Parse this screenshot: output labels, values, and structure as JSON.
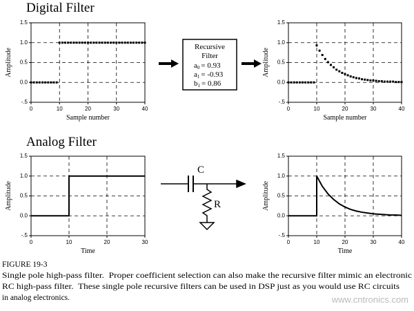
{
  "headings": {
    "digital": "Digital Filter",
    "analog": "Analog Filter"
  },
  "filter_box": {
    "title_lines": [
      "Recursive",
      "Filter"
    ],
    "coefficients": [
      {
        "symbol": "a",
        "subscript": "0",
        "expr": "= 0.93"
      },
      {
        "symbol": "a",
        "subscript": "1",
        "expr": "= -0.93"
      },
      {
        "symbol": "b",
        "subscript": "1",
        "expr": "= 0.86"
      }
    ]
  },
  "circuit": {
    "capacitor": "C",
    "resistor": "R"
  },
  "caption": {
    "figure": "FIGURE 19-3",
    "lines": [
      "Single pole high-pass filter.  Proper coefficient selection can also make the recursive filter mimic an electronic",
      "RC high-pass filter.  These single pole recursive filters can be used in DSP just as you would use RC circuits",
      "in analog electronics."
    ]
  },
  "watermark": "www.cntronics.com",
  "chart_data": [
    {
      "type": "scatter",
      "x_label": "Sample number",
      "y_label": "Amplitude",
      "color": "#000000",
      "grid": true,
      "xlim": [
        0,
        40
      ],
      "xticks": [
        0,
        10,
        20,
        30,
        40
      ],
      "ylim": [
        -0.5,
        1.5
      ],
      "yticks": [
        {
          "value": -0.5,
          "label": "-.5"
        },
        {
          "value": 0,
          "label": "0.0"
        },
        {
          "value": 0.5,
          "label": "0.5"
        },
        {
          "value": 1,
          "label": "1.0"
        },
        {
          "value": 1.5,
          "label": "1.5"
        }
      ],
      "x": [
        0,
        1,
        2,
        3,
        4,
        5,
        6,
        7,
        8,
        9,
        10,
        11,
        12,
        13,
        14,
        15,
        16,
        17,
        18,
        19,
        20,
        21,
        22,
        23,
        24,
        25,
        26,
        27,
        28,
        29,
        30,
        31,
        32,
        33,
        34,
        35,
        36,
        37,
        38,
        39,
        40
      ],
      "values": [
        0,
        0,
        0,
        0,
        0,
        0,
        0,
        0,
        0,
        0,
        1,
        1,
        1,
        1,
        1,
        1,
        1,
        1,
        1,
        1,
        1,
        1,
        1,
        1,
        1,
        1,
        1,
        1,
        1,
        1,
        1,
        1,
        1,
        1,
        1,
        1,
        1,
        1,
        1,
        1,
        1
      ]
    },
    {
      "type": "scatter",
      "x_label": "Sample number",
      "y_label": "Amplitude",
      "color": "#000000",
      "grid": true,
      "xlim": [
        0,
        40
      ],
      "xticks": [
        0,
        10,
        20,
        30,
        40
      ],
      "ylim": [
        -0.5,
        1.5
      ],
      "yticks": [
        {
          "value": -0.5,
          "label": "-.5"
        },
        {
          "value": 0,
          "label": "0.0"
        },
        {
          "value": 0.5,
          "label": "0.5"
        },
        {
          "value": 1,
          "label": "1.0"
        },
        {
          "value": 1.5,
          "label": "1.5"
        }
      ],
      "x": [
        0,
        1,
        2,
        3,
        4,
        5,
        6,
        7,
        8,
        9,
        10,
        11,
        12,
        13,
        14,
        15,
        16,
        17,
        18,
        19,
        20,
        21,
        22,
        23,
        24,
        25,
        26,
        27,
        28,
        29,
        30,
        31,
        32,
        33,
        34,
        35,
        36,
        37,
        38,
        39,
        40
      ],
      "values": [
        0,
        0,
        0,
        0,
        0,
        0,
        0,
        0,
        0,
        0,
        0.93,
        0.8,
        0.69,
        0.59,
        0.51,
        0.44,
        0.38,
        0.32,
        0.28,
        0.24,
        0.21,
        0.18,
        0.15,
        0.13,
        0.11,
        0.1,
        0.08,
        0.07,
        0.06,
        0.05,
        0.05,
        0.04,
        0.03,
        0.03,
        0.02,
        0.02,
        0.02,
        0.02,
        0.01,
        0.01,
        0.01
      ]
    },
    {
      "type": "line",
      "x_label": "Time",
      "y_label": "Amplitude",
      "color": "#000000",
      "grid": true,
      "xlim": [
        0,
        30
      ],
      "xticks": [
        0,
        10,
        20,
        30
      ],
      "ylim": [
        -0.5,
        1.5
      ],
      "yticks": [
        {
          "value": -0.5,
          "label": "-.5"
        },
        {
          "value": 0,
          "label": "0.0"
        },
        {
          "value": 0.5,
          "label": "0.5"
        },
        {
          "value": 1,
          "label": "1.0"
        },
        {
          "value": 1.5,
          "label": "1.5"
        }
      ],
      "x": [
        0,
        10,
        10,
        30
      ],
      "values": [
        0,
        0,
        1,
        1
      ]
    },
    {
      "type": "line",
      "x_label": "Time",
      "y_label": "Amplitude",
      "color": "#000000",
      "grid": true,
      "xlim": [
        0,
        40
      ],
      "xticks": [
        0,
        10,
        20,
        30,
        40
      ],
      "ylim": [
        -0.5,
        1.5
      ],
      "yticks": [
        {
          "value": -0.5,
          "label": "-.5"
        },
        {
          "value": 0,
          "label": "0.0"
        },
        {
          "value": 0.5,
          "label": "0.5"
        },
        {
          "value": 1,
          "label": "1.0"
        },
        {
          "value": 1.5,
          "label": "1.5"
        }
      ],
      "x": [
        0,
        10,
        10,
        12,
        14,
        16,
        18,
        20,
        22,
        24,
        26,
        28,
        30,
        32,
        34,
        36,
        38,
        40
      ],
      "values": [
        0,
        0,
        1,
        0.74,
        0.55,
        0.41,
        0.3,
        0.22,
        0.16,
        0.12,
        0.09,
        0.07,
        0.05,
        0.04,
        0.03,
        0.02,
        0.02,
        0.01
      ]
    }
  ]
}
